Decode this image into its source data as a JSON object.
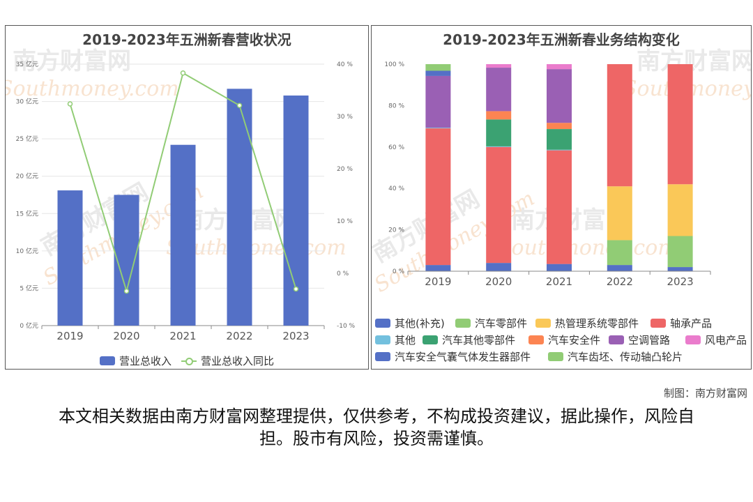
{
  "watermark": {
    "cn": "南方财富网",
    "en": "Southmoney.com"
  },
  "credit": "制图：南方财富网",
  "disclaimer": "本文相关数据由南方财富网整理提供，仅供参考，不构成投资建议，据此操作，风险自担。股市有风险，投资需谨慎。",
  "chart_data": [
    {
      "type": "bar",
      "title": "2019-2023年五洲新春营收状况",
      "categories": [
        "2019",
        "2020",
        "2021",
        "2022",
        "2023"
      ],
      "series": [
        {
          "name": "营业总收入",
          "type": "bar",
          "axis": "left",
          "color": "#5470c6",
          "values": [
            18.1,
            17.5,
            24.2,
            31.7,
            30.8
          ]
        },
        {
          "name": "营业总收入同比",
          "type": "line",
          "axis": "right",
          "color": "#91cc75",
          "values": [
            32.4,
            -3.4,
            38.3,
            32.1,
            -3.0
          ]
        }
      ],
      "y_left": {
        "min": 0,
        "max": 35,
        "step": 5,
        "unit": "亿元",
        "ticks": [
          "0 亿元",
          "5 亿元",
          "10 亿元",
          "15 亿元",
          "20 亿元",
          "25 亿元",
          "30 亿元",
          "35 亿元"
        ]
      },
      "y_right": {
        "min": -10,
        "max": 40,
        "step": 10,
        "unit": "%",
        "ticks": [
          "-10 %",
          "0 %",
          "10 %",
          "20 %",
          "30 %",
          "40 %"
        ]
      },
      "legend_position": "bottom",
      "grid": true
    },
    {
      "type": "bar",
      "stacked": true,
      "title": "2019-2023年五洲新春业务结构变化",
      "categories": [
        "2019",
        "2020",
        "2021",
        "2022",
        "2023"
      ],
      "y": {
        "min": 0,
        "max": 100,
        "unit": "%",
        "ticks": [
          "0 %",
          "20 %",
          "40 %",
          "60 %",
          "80 %",
          "100 %"
        ]
      },
      "series": [
        {
          "name": "其他(补充)",
          "color": "#5470c6",
          "values": [
            0,
            0,
            0,
            3,
            2
          ]
        },
        {
          "name": "汽车零部件",
          "color": "#91cc75",
          "values": [
            0,
            0,
            0,
            12,
            15
          ]
        },
        {
          "name": "热管理系统零部件",
          "color": "#fac858",
          "values": [
            0,
            0,
            0,
            26,
            25
          ]
        },
        {
          "name": "轴承产品",
          "color": "#ee6666",
          "values": [
            66,
            56,
            55,
            59,
            58
          ]
        },
        {
          "name": "其他",
          "color": "#73c0de",
          "values": [
            0.3,
            0.3,
            0.3,
            0,
            0
          ]
        },
        {
          "name": "汽车其他零部件",
          "color": "#3ba272",
          "values": [
            0,
            13,
            10,
            0,
            0
          ]
        },
        {
          "name": "汽车安全件",
          "color": "#fc8452",
          "values": [
            0,
            4,
            3,
            0,
            0
          ]
        },
        {
          "name": "空调管路",
          "color": "#9a60b4",
          "values": [
            25,
            21,
            26,
            0,
            0
          ]
        },
        {
          "name": "风电产品",
          "color": "#ea7ccc",
          "values": [
            0,
            1.7,
            2.4,
            0,
            0
          ]
        },
        {
          "name": "汽车安全气囊气体发生器部件",
          "color": "#5470c6",
          "values": [
            2.5,
            0,
            0,
            0,
            0
          ]
        },
        {
          "name": "汽车齿坯、传动轴凸轮片",
          "color": "#91cc75",
          "values": [
            3.2,
            0,
            0,
            0,
            0
          ]
        }
      ],
      "base_series": {
        "name": "",
        "color": "#5470c6",
        "values": [
          3,
          4,
          3.5,
          0,
          0
        ]
      },
      "legend_position": "bottom",
      "grid": false
    }
  ]
}
